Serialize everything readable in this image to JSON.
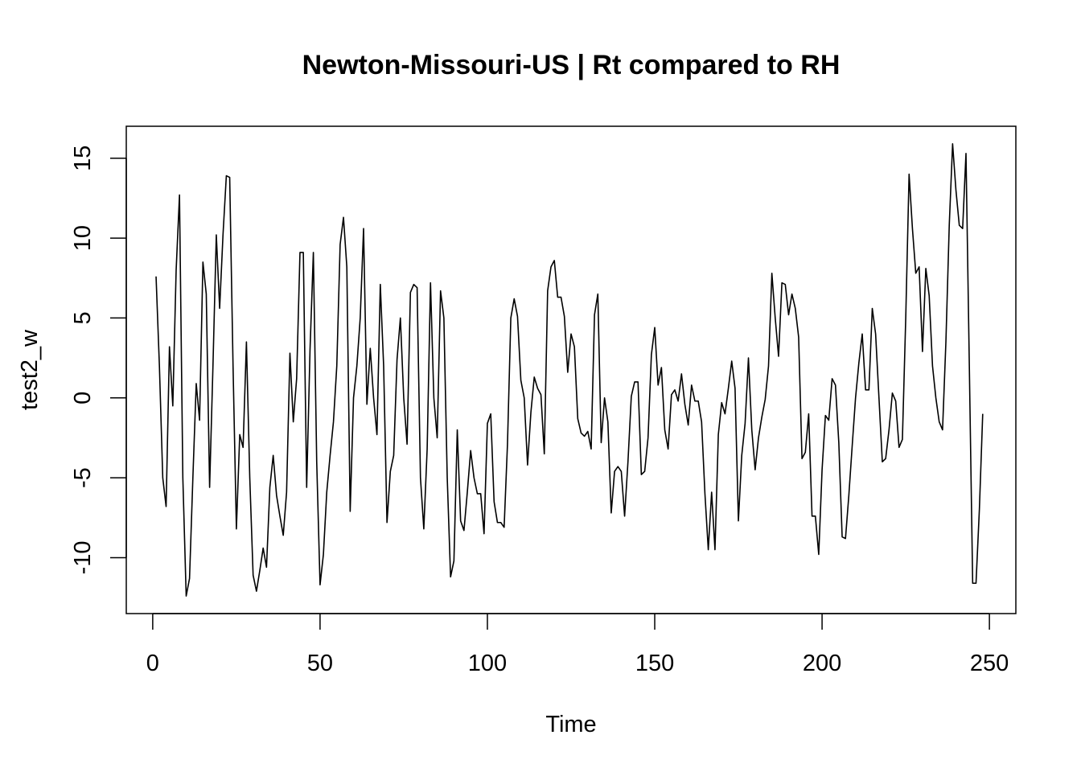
{
  "chart_data": {
    "type": "line",
    "title": "Newton-Missouri-US | Rt compared to RH",
    "xlabel": "Time",
    "ylabel": "test2_w",
    "xlim": [
      -7.9,
      257.9
    ],
    "ylim": [
      -13.5,
      17
    ],
    "x_ticks": [
      0,
      50,
      100,
      150,
      200,
      250
    ],
    "y_ticks": [
      -10,
      -5,
      0,
      5,
      10,
      15
    ],
    "x_start": 1,
    "grid": false,
    "legend": "none",
    "series": [
      {
        "color": "#000000",
        "values": [
          7.6,
          2,
          -5,
          -6.8,
          3.2,
          -0.5,
          8,
          12.7,
          -5,
          -12.4,
          -11.3,
          -5,
          0.9,
          -1.4,
          8.5,
          6.5,
          -5.6,
          2,
          10.2,
          5.6,
          10.2,
          13.9,
          13.8,
          2,
          -8.2,
          -2.3,
          -3.1,
          3.5,
          -5,
          -11.1,
          -12.1,
          -10.8,
          -9.4,
          -10.6,
          -5.6,
          -3.6,
          -6.1,
          -7.4,
          -8.6,
          -5.9,
          2.8,
          -1.5,
          1.2,
          9.1,
          9.1,
          -5.6,
          3,
          9.1,
          -4,
          -11.7,
          -9.8,
          -5.9,
          -3.6,
          -1.5,
          2,
          9.6,
          11.3,
          8.2,
          -7.1,
          0,
          2,
          5,
          10.6,
          -0.4,
          3.1,
          0,
          -2.3,
          7.1,
          2,
          -7.8,
          -4.6,
          -3.6,
          2.4,
          5,
          0,
          -2.9,
          6.6,
          7.1,
          6.9,
          -5,
          -8.2,
          -3.2,
          7.2,
          0,
          -2.5,
          6.7,
          5,
          -5,
          -11.2,
          -10.2,
          -2,
          -7.7,
          -8.3,
          -5.9,
          -3.3,
          -5,
          -6,
          -6,
          -8.5,
          -1.6,
          -1,
          -6.5,
          -7.8,
          -7.8,
          -8.1,
          -2.9,
          5,
          6.2,
          5.1,
          1.1,
          0,
          -4.2,
          -0.9,
          1.3,
          0.6,
          0.2,
          -3.5,
          6.7,
          8.2,
          8.6,
          6.3,
          6.3,
          5.1,
          1.6,
          4.0,
          3.2,
          -1.3,
          -2.2,
          -2.4,
          -2.1,
          -3.2,
          5.2,
          6.5,
          -2.8,
          0,
          -1.5,
          -7.2,
          -4.6,
          -4.3,
          -4.6,
          -7.4,
          -4,
          0.1,
          1.0,
          1.0,
          -4.8,
          -4.6,
          -2.5,
          2.7,
          4.4,
          0.8,
          1.9,
          -2,
          -3.2,
          0.2,
          0.5,
          -0.2,
          1.5,
          -0.4,
          -1.7,
          0.8,
          -0.2,
          -0.2,
          -1.5,
          -6,
          -9.5,
          -5.9,
          -9.5,
          -2.3,
          -0.3,
          -1,
          0.6,
          2.3,
          0.6,
          -7.7,
          -3.6,
          -1.6,
          2.5,
          -2,
          -4.5,
          -2.5,
          -1.2,
          -0.1,
          2.0,
          7.8,
          5,
          2.6,
          7.2,
          7.1,
          5.2,
          6.5,
          5.6,
          3.8,
          -3.8,
          -3.4,
          -1,
          -7.4,
          -7.4,
          -9.8,
          -4.5,
          -1.1,
          -1.4,
          1.2,
          0.8,
          -2.8,
          -8.7,
          -8.8,
          -6.1,
          -3,
          0,
          2.2,
          4,
          0.5,
          0.5,
          5.6,
          4,
          0,
          -4,
          -3.8,
          -2,
          0.3,
          -0.2,
          -3.1,
          -2.6,
          5,
          14,
          10.6,
          7.8,
          8.2,
          2.9,
          8.1,
          6.4,
          2,
          0,
          -1.5,
          -2,
          3.5,
          10.8,
          15.9,
          13,
          10.8,
          10.6,
          15.3,
          2,
          -11.6,
          -11.6,
          -7,
          -1
        ]
      }
    ]
  }
}
